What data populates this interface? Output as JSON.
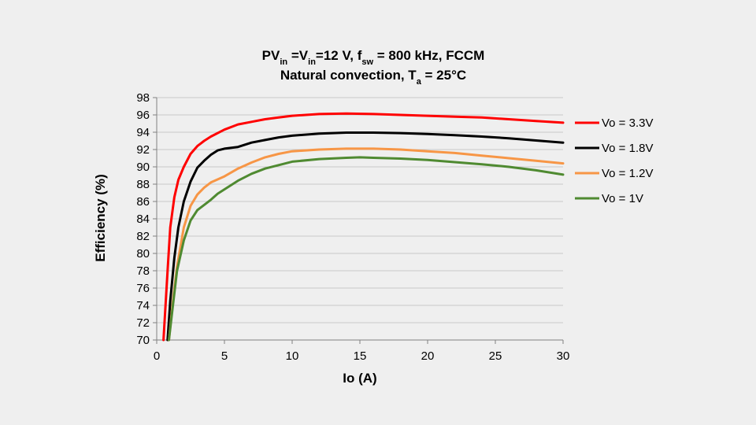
{
  "chart_data": {
    "type": "line",
    "title": {
      "line1_parts": [
        "PV",
        "in",
        " =V",
        "in",
        "=12 V, f",
        "sw",
        " = 800 kHz, FCCM"
      ],
      "line2_parts": [
        "Natural convection, T",
        "a",
        " = 25°C"
      ]
    },
    "xlabel": "Io (A)",
    "ylabel": "Efficiency (%)",
    "xlim": [
      0,
      30
    ],
    "ylim": [
      70,
      98
    ],
    "xticks": [
      0,
      5,
      10,
      15,
      20,
      25,
      30
    ],
    "yticks": [
      70,
      72,
      74,
      76,
      78,
      80,
      82,
      84,
      86,
      88,
      90,
      92,
      94,
      96,
      98
    ],
    "grid": "horizontal",
    "legend": "right",
    "series": [
      {
        "name": "Vo = 3.3V",
        "color": "#ff0000",
        "x": [
          0.5,
          0.8,
          1.0,
          1.3,
          1.6,
          2.0,
          2.5,
          3.0,
          3.5,
          4.0,
          5.0,
          6.0,
          7.0,
          8.0,
          9.0,
          10.0,
          12.0,
          14.0,
          16.0,
          18.0,
          20.0,
          22.0,
          24.0,
          26.0,
          28.0,
          30.0
        ],
        "y": [
          70,
          78,
          83,
          86.5,
          88.5,
          90,
          91.5,
          92.4,
          93,
          93.5,
          94.3,
          94.9,
          95.2,
          95.5,
          95.7,
          95.9,
          96.1,
          96.15,
          96.1,
          96.0,
          95.9,
          95.8,
          95.7,
          95.5,
          95.3,
          95.1
        ]
      },
      {
        "name": "Vo = 1.8V",
        "color": "#000000",
        "x": [
          0.8,
          1.0,
          1.3,
          1.6,
          2.0,
          2.5,
          3.0,
          3.5,
          4.0,
          4.5,
          5.0,
          6.0,
          7.0,
          8.0,
          9.0,
          10.0,
          12.0,
          14.0,
          16.0,
          18.0,
          20.0,
          22.0,
          24.0,
          26.0,
          28.0,
          30.0
        ],
        "y": [
          70,
          74.5,
          79.5,
          83,
          86,
          88.3,
          89.9,
          90.7,
          91.4,
          91.9,
          92.1,
          92.3,
          92.8,
          93.1,
          93.4,
          93.6,
          93.85,
          93.95,
          93.95,
          93.9,
          93.8,
          93.65,
          93.5,
          93.3,
          93.05,
          92.8
        ]
      },
      {
        "name": "Vo = 1.2V",
        "color": "#f79646",
        "x": [
          0.9,
          1.2,
          1.5,
          2.0,
          2.5,
          3.0,
          3.5,
          4.0,
          5.0,
          6.0,
          7.0,
          8.0,
          9.0,
          10.0,
          12.0,
          14.0,
          16.0,
          18.0,
          20.0,
          22.0,
          24.0,
          26.0,
          28.0,
          30.0
        ],
        "y": [
          70,
          74.5,
          78.5,
          83,
          85.5,
          86.8,
          87.6,
          88.2,
          88.9,
          89.8,
          90.5,
          91.1,
          91.5,
          91.8,
          92.0,
          92.1,
          92.1,
          92.0,
          91.8,
          91.6,
          91.3,
          91.0,
          90.7,
          90.4
        ]
      },
      {
        "name": "Vo = 1V",
        "color": "#4f8a31",
        "x": [
          0.9,
          1.2,
          1.5,
          2.0,
          2.5,
          3.0,
          3.5,
          4.0,
          4.5,
          5.0,
          6.0,
          7.0,
          8.0,
          9.0,
          10.0,
          12.0,
          14.0,
          15.0,
          16.0,
          18.0,
          20.0,
          22.0,
          24.0,
          26.0,
          28.0,
          30.0
        ],
        "y": [
          70,
          74,
          78,
          81.5,
          83.8,
          85,
          85.6,
          86.2,
          86.9,
          87.4,
          88.4,
          89.2,
          89.8,
          90.2,
          90.6,
          90.9,
          91.05,
          91.1,
          91.05,
          90.95,
          90.8,
          90.55,
          90.3,
          90.0,
          89.6,
          89.1
        ]
      }
    ]
  }
}
